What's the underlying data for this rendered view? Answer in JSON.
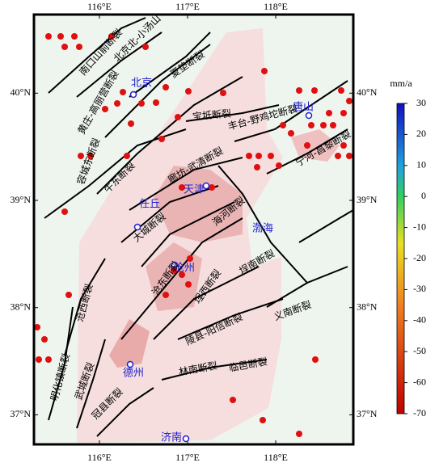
{
  "map": {
    "lon_ticks": [
      {
        "value": 116,
        "label": "116°E"
      },
      {
        "value": 117,
        "label": "117°E"
      },
      {
        "value": 118,
        "label": "118°E"
      }
    ],
    "lat_ticks": [
      {
        "value": 40,
        "label": "40°N"
      },
      {
        "value": 39,
        "label": "39°N"
      },
      {
        "value": 38,
        "label": "38°N"
      },
      {
        "value": 37,
        "label": "37°N"
      }
    ],
    "colorbar": {
      "unit": "mm/a",
      "lim": [
        -70,
        30
      ],
      "ticks": [
        30,
        20,
        10,
        0,
        -10,
        -20,
        -30,
        -40,
        -50,
        -60,
        -70
      ]
    },
    "cities": [
      "北京",
      "唐山",
      "天津",
      "任丘",
      "沧州",
      "德州",
      "济南"
    ],
    "sea": "渤海",
    "faults": [
      "南口山前断裂",
      "北京北-小汤山",
      "夏垫断裂",
      "黄庄-高丽营断裂",
      "宝坻断裂",
      "丰台-野鸡坨断裂",
      "宁河-昌黎断裂",
      "牛东断裂",
      "容城东断裂",
      "廊坊-武清断裂",
      "海河断裂",
      "大城断裂",
      "沧东断裂",
      "沧西断裂",
      "埕西断裂",
      "埕南断裂",
      "义南断裂",
      "陵县-阳信断裂",
      "林南断裂",
      "临邑断裂",
      "明化镇断裂",
      "武城断裂",
      "冠县断裂"
    ]
  }
}
